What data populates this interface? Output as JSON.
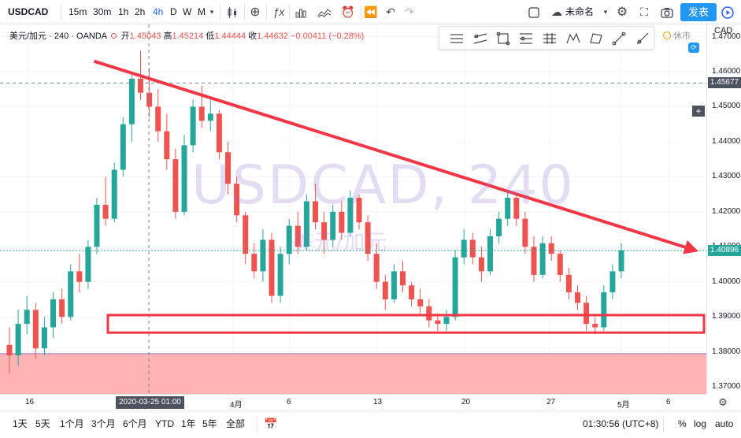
{
  "toolbar": {
    "symbol": "USDCAD",
    "intervals": [
      "15m",
      "30m",
      "1h",
      "2h",
      "4h",
      "D",
      "W",
      "M"
    ],
    "active_interval": "4h",
    "layout_name": "未命名",
    "publish_label": "发表"
  },
  "legend": {
    "pair_name": "美元/加元",
    "interval": "240",
    "source": "OANDA",
    "open_label": "开",
    "open": "1.45043",
    "high_label": "高",
    "high": "1.45214",
    "low_label": "低",
    "low": "1.44444",
    "close_label": "收",
    "close": "1.44632",
    "change": "−0.00411 (−0.28%)"
  },
  "watermark": {
    "symbol": "USDCAD, 240",
    "name": "美元/加元"
  },
  "market_status": "休市",
  "price_axis": {
    "currency": "CAD",
    "ticks": [
      "1.47000",
      "1.46000",
      "1.45000",
      "1.44000",
      "1.43000",
      "1.42000",
      "1.41000",
      "1.40000",
      "1.39000",
      "1.38000",
      "1.37000"
    ],
    "crosshair_price": "1.45677",
    "last_price": "1.40896"
  },
  "time_axis": {
    "ticks": [
      "16",
      "4月",
      "6",
      "13",
      "20",
      "27",
      "5月",
      "6"
    ],
    "crosshair_time": "2020-03-25   01:00"
  },
  "bottom_bar": {
    "ranges": [
      "1天",
      "5天",
      "1个月",
      "3个月",
      "6个月",
      "YTD",
      "1年",
      "5年",
      "全部"
    ],
    "clock": "01:30:56 (UTC+8)",
    "percent": "%",
    "log": "log",
    "auto": "auto"
  },
  "colors": {
    "up": "#26a69a",
    "down": "#ef5350",
    "accent": "#2962ff",
    "annotation": "#f23645",
    "zone": "#ffb0b0"
  },
  "chart_data": {
    "type": "candlestick",
    "ylim": [
      1.368,
      1.4735
    ],
    "candles": [
      [
        1.382,
        1.387,
        1.374,
        1.379
      ],
      [
        1.379,
        1.392,
        1.376,
        1.388
      ],
      [
        1.388,
        1.396,
        1.385,
        1.392
      ],
      [
        1.392,
        1.394,
        1.378,
        1.381
      ],
      [
        1.381,
        1.39,
        1.379,
        1.387
      ],
      [
        1.387,
        1.397,
        1.384,
        1.395
      ],
      [
        1.395,
        1.398,
        1.388,
        1.39
      ],
      [
        1.39,
        1.405,
        1.389,
        1.403
      ],
      [
        1.403,
        1.408,
        1.397,
        1.4
      ],
      [
        1.4,
        1.412,
        1.398,
        1.41
      ],
      [
        1.41,
        1.424,
        1.408,
        1.422
      ],
      [
        1.422,
        1.43,
        1.416,
        1.418
      ],
      [
        1.418,
        1.434,
        1.417,
        1.432
      ],
      [
        1.432,
        1.447,
        1.43,
        1.445
      ],
      [
        1.445,
        1.46,
        1.44,
        1.458
      ],
      [
        1.458,
        1.466,
        1.452,
        1.454
      ],
      [
        1.454,
        1.461,
        1.447,
        1.45
      ],
      [
        1.45,
        1.455,
        1.44,
        1.443
      ],
      [
        1.443,
        1.448,
        1.432,
        1.435
      ],
      [
        1.435,
        1.438,
        1.418,
        1.42
      ],
      [
        1.42,
        1.442,
        1.419,
        1.439
      ],
      [
        1.439,
        1.452,
        1.437,
        1.45
      ],
      [
        1.45,
        1.456,
        1.444,
        1.446
      ],
      [
        1.446,
        1.453,
        1.443,
        1.448
      ],
      [
        1.448,
        1.449,
        1.435,
        1.437
      ],
      [
        1.437,
        1.44,
        1.425,
        1.428
      ],
      [
        1.428,
        1.43,
        1.417,
        1.419
      ],
      [
        1.419,
        1.42,
        1.405,
        1.408
      ],
      [
        1.408,
        1.411,
        1.401,
        1.403
      ],
      [
        1.403,
        1.415,
        1.4,
        1.412
      ],
      [
        1.412,
        1.414,
        1.394,
        1.396
      ],
      [
        1.396,
        1.41,
        1.394,
        1.408
      ],
      [
        1.408,
        1.418,
        1.405,
        1.416
      ],
      [
        1.416,
        1.42,
        1.408,
        1.41
      ],
      [
        1.41,
        1.425,
        1.409,
        1.423
      ],
      [
        1.423,
        1.428,
        1.415,
        1.417
      ],
      [
        1.417,
        1.42,
        1.408,
        1.412
      ],
      [
        1.412,
        1.422,
        1.41,
        1.42
      ],
      [
        1.42,
        1.423,
        1.412,
        1.414
      ],
      [
        1.414,
        1.426,
        1.413,
        1.424
      ],
      [
        1.424,
        1.425,
        1.415,
        1.417
      ],
      [
        1.417,
        1.419,
        1.406,
        1.408
      ],
      [
        1.408,
        1.411,
        1.398,
        1.4
      ],
      [
        1.4,
        1.402,
        1.392,
        1.395
      ],
      [
        1.395,
        1.405,
        1.394,
        1.403
      ],
      [
        1.403,
        1.406,
        1.397,
        1.399
      ],
      [
        1.399,
        1.4,
        1.393,
        1.395
      ],
      [
        1.395,
        1.398,
        1.391,
        1.393
      ],
      [
        1.393,
        1.395,
        1.387,
        1.389
      ],
      [
        1.389,
        1.391,
        1.386,
        1.388
      ],
      [
        1.388,
        1.392,
        1.386,
        1.39
      ],
      [
        1.39,
        1.409,
        1.389,
        1.407
      ],
      [
        1.407,
        1.415,
        1.405,
        1.412
      ],
      [
        1.412,
        1.414,
        1.405,
        1.407
      ],
      [
        1.407,
        1.41,
        1.4,
        1.403
      ],
      [
        1.403,
        1.415,
        1.402,
        1.413
      ],
      [
        1.413,
        1.42,
        1.411,
        1.418
      ],
      [
        1.418,
        1.426,
        1.416,
        1.424
      ],
      [
        1.424,
        1.425,
        1.416,
        1.418
      ],
      [
        1.418,
        1.42,
        1.408,
        1.41
      ],
      [
        1.41,
        1.413,
        1.4,
        1.402
      ],
      [
        1.402,
        1.413,
        1.401,
        1.411
      ],
      [
        1.411,
        1.413,
        1.406,
        1.408
      ],
      [
        1.408,
        1.409,
        1.4,
        1.402
      ],
      [
        1.402,
        1.404,
        1.395,
        1.397
      ],
      [
        1.397,
        1.399,
        1.392,
        1.394
      ],
      [
        1.394,
        1.396,
        1.386,
        1.388
      ],
      [
        1.388,
        1.39,
        1.385,
        1.387
      ],
      [
        1.387,
        1.399,
        1.386,
        1.397
      ],
      [
        1.397,
        1.405,
        1.395,
        1.403
      ],
      [
        1.403,
        1.411,
        1.401,
        1.409
      ]
    ],
    "trendline": {
      "from": [
        14,
        1.463
      ],
      "to": [
        80,
        1.409
      ]
    },
    "support_zone": [
      1.3855,
      1.3905
    ],
    "shaded_zone_top": 1.3795
  }
}
